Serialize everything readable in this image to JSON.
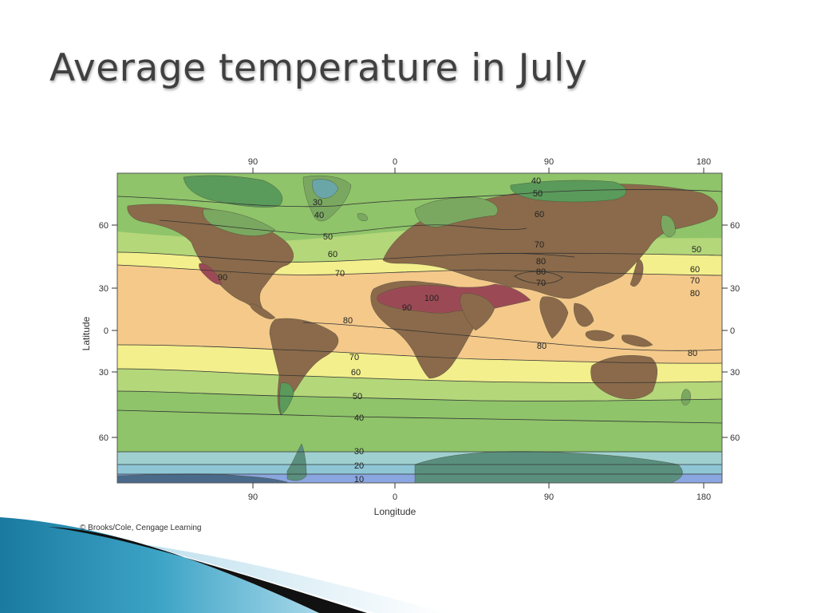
{
  "slide": {
    "title": "Average temperature in July"
  },
  "map": {
    "axes": {
      "top_ticks": [
        "90",
        "0",
        "90",
        "180"
      ],
      "bottom_ticks": [
        "90",
        "0",
        "90",
        "180"
      ],
      "left_ticks": [
        "60",
        "30",
        "0",
        "30",
        "60"
      ],
      "right_ticks": [
        "60",
        "30",
        "0",
        "30",
        "60"
      ],
      "x_label": "Longitude",
      "y_label": "Latitude"
    },
    "isotherm_labels": {
      "t_40_top": "40",
      "t_50_top": "50",
      "t_60_top": "60",
      "t_70_top": "70",
      "t_80_top": "80",
      "t_80_asia": "80",
      "t_70_asia": "70",
      "t_30_greenland": "30",
      "t_40_greenland": "40",
      "t_50_atl": "50",
      "t_60_atl": "60",
      "t_70_atl": "70",
      "t_90_na": "90",
      "t_100_sahara": "100",
      "t_90_sahara": "90",
      "t_80_atl_eq": "80",
      "t_80_ind": "80",
      "t_50_pac": "50",
      "t_60_pac": "60",
      "t_70_pac": "70",
      "t_80_pac": "80",
      "t_80_pac_s": "80",
      "t_70_s": "70",
      "t_60_s": "60",
      "t_50_s": "50",
      "t_40_s": "40",
      "t_30_s": "30",
      "t_20_s": "20",
      "t_10_s": "10"
    },
    "colors": {
      "lt_40": "#5a9a5a",
      "band_40_50": "#8fc46a",
      "band_50_60": "#b4d77a",
      "band_60_70": "#f3ef8c",
      "band_70_80": "#f4c98a",
      "band_80_90": "#f1b57b",
      "land_hot": "#8a6a4a",
      "land_veryhot": "#9b4a55",
      "band_30_40": "#9fd0cf",
      "band_20_30": "#8ec6d6",
      "band_10_20": "#8aa6e0",
      "antarctica": "#5a8f7e",
      "greenland_ice": "#6aa6a8"
    },
    "credit": "© Brooks/Cole, Cengage Learning"
  }
}
